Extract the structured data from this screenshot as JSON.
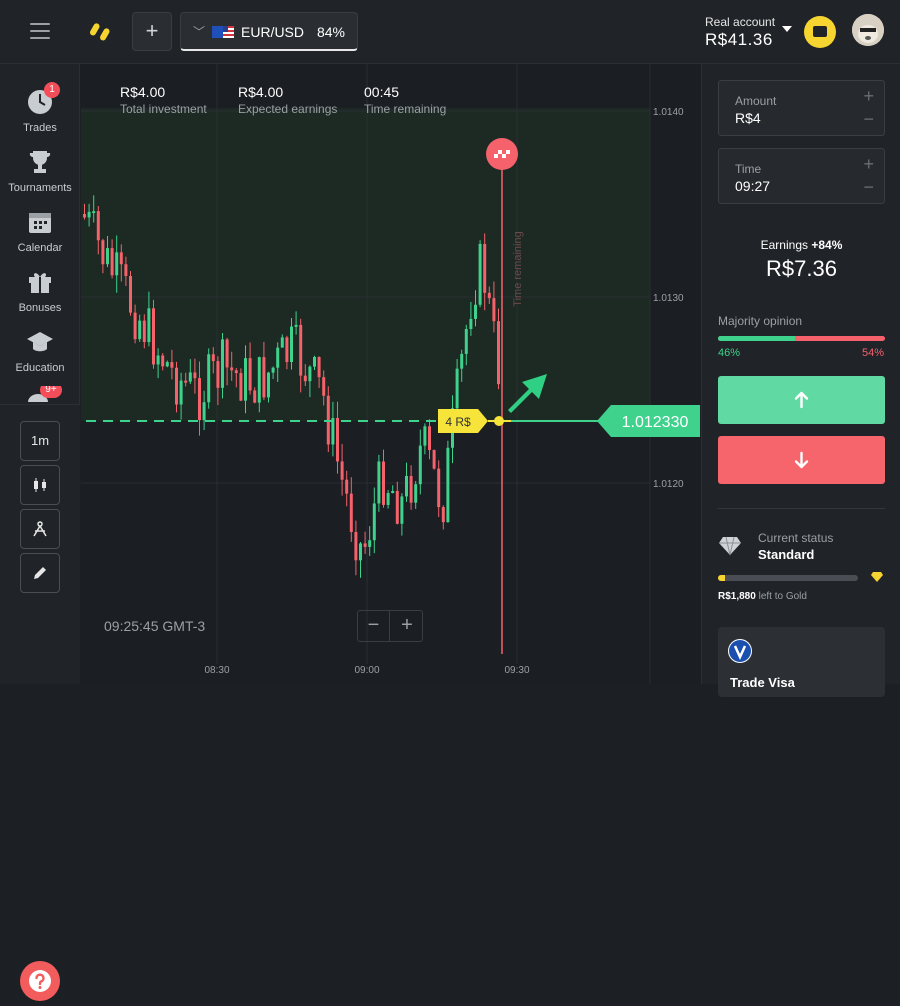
{
  "topbar": {
    "asset_name": "EUR/USD",
    "asset_payout": "84%",
    "add_label": "+",
    "account_type": "Real account",
    "account_balance": "R$41.36"
  },
  "sidebar": {
    "items": [
      {
        "label": "Trades",
        "icon": "clock-icon",
        "badge": "1"
      },
      {
        "label": "Tournaments",
        "icon": "trophy-icon"
      },
      {
        "label": "Calendar",
        "icon": "calendar-icon"
      },
      {
        "label": "Bonuses",
        "icon": "gift-icon"
      },
      {
        "label": "Education",
        "icon": "graduation-cap-icon"
      }
    ],
    "extra_badge": "9+",
    "timeframe": "1m"
  },
  "trade_info": {
    "investment_value": "R$4.00",
    "investment_label": "Total investment",
    "earnings_value": "R$4.00",
    "earnings_label": "Expected earnings",
    "time_value": "00:45",
    "time_label": "Time remaining"
  },
  "chart_data": {
    "type": "candlestick",
    "price_axis": [
      "1.0140",
      "1.0130",
      "1.0120"
    ],
    "time_axis": [
      "08:30",
      "09:00",
      "09:30"
    ],
    "current_price": "1.012330",
    "trade_tag": "4 R$",
    "expiry_label": "Time remaining",
    "clock": "09:25:45 GMT-3",
    "colors": {
      "up": "#3ed28c",
      "down": "#f5626c"
    }
  },
  "right_panel": {
    "amount_label": "Amount",
    "amount_value": "R$4",
    "time_label": "Time",
    "time_value": "09:27",
    "earnings_label": "Earnings",
    "earnings_pct": "+84%",
    "earnings_value": "R$7.36",
    "majority_label": "Majority opinion",
    "majority_up": "46%",
    "majority_down": "54%",
    "majority_up_fraction": 0.46,
    "status_label": "Current status",
    "status_value": "Standard",
    "gold_amount": "R$1,880",
    "gold_text": " left to Gold",
    "gold_progress_fraction": 0.05,
    "card_name": "Trade Visa"
  }
}
